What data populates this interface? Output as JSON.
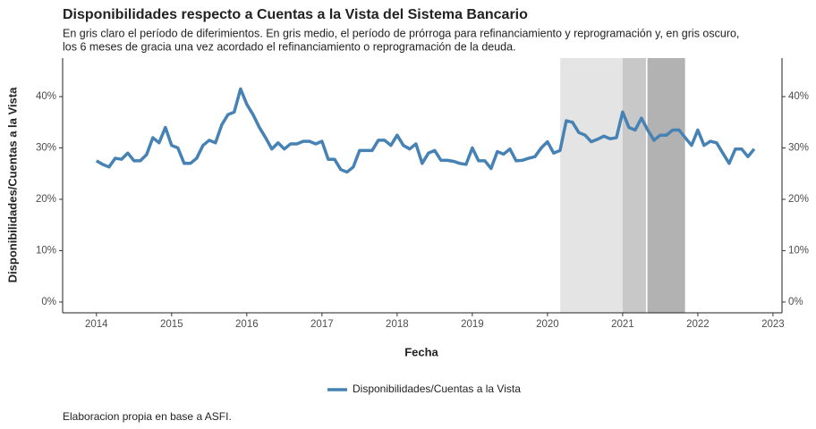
{
  "chart_data": {
    "type": "line",
    "title": "Disponibilidades respecto a Cuentas a la Vista del Sistema Bancario",
    "subtitle": [
      "En gris claro el período de diferimientos. En gris medio, el período de prórroga para refinanciamiento y reprogramación y, en gris oscuro,",
      "los 6 meses de gracia una vez acordado el refinanciamiento o reprogramación de la deuda."
    ],
    "x_label": "Fecha",
    "y_label": "Disponibilidades/Cuentas a la Vista",
    "caption": "Elaboracion propia en base a ASFI.",
    "xlim": [
      2013.55,
      2023.12
    ],
    "xticks": [
      2014,
      2015,
      2016,
      2017,
      2018,
      2019,
      2020,
      2021,
      2022,
      2023
    ],
    "ylim": [
      -2.1,
      47.5
    ],
    "yticks": [
      {
        "value": 0,
        "label": "0%"
      },
      {
        "value": 10,
        "label": "10%"
      },
      {
        "value": 20,
        "label": "20%"
      },
      {
        "value": 30,
        "label": "30%"
      },
      {
        "value": 40,
        "label": "40%"
      }
    ],
    "shaded_regions": [
      {
        "x": [
          2020.17,
          2021.0
        ],
        "color": "#e4e4e4"
      },
      {
        "x": [
          2021.0,
          2021.31
        ],
        "color": "#c8c8c8"
      },
      {
        "x": [
          2021.33,
          2021.83
        ],
        "color": "#b2b2b2"
      }
    ],
    "legend_position": "bottom",
    "x": [
      2014,
      2014.083,
      2014.167,
      2014.25,
      2014.333,
      2014.417,
      2014.5,
      2014.583,
      2014.667,
      2014.75,
      2014.833,
      2014.917,
      2015,
      2015.083,
      2015.167,
      2015.25,
      2015.333,
      2015.417,
      2015.5,
      2015.583,
      2015.667,
      2015.75,
      2015.833,
      2015.917,
      2016,
      2016.083,
      2016.167,
      2016.25,
      2016.333,
      2016.417,
      2016.5,
      2016.583,
      2016.667,
      2016.75,
      2016.833,
      2016.917,
      2017,
      2017.083,
      2017.167,
      2017.25,
      2017.333,
      2017.417,
      2017.5,
      2017.583,
      2017.667,
      2017.75,
      2017.833,
      2017.917,
      2018,
      2018.083,
      2018.167,
      2018.25,
      2018.333,
      2018.417,
      2018.5,
      2018.583,
      2018.667,
      2018.75,
      2018.833,
      2018.917,
      2019,
      2019.083,
      2019.167,
      2019.25,
      2019.333,
      2019.417,
      2019.5,
      2019.583,
      2019.667,
      2019.75,
      2019.833,
      2019.917,
      2020,
      2020.083,
      2020.167,
      2020.25,
      2020.333,
      2020.417,
      2020.5,
      2020.583,
      2020.667,
      2020.75,
      2020.833,
      2020.917,
      2021,
      2021.083,
      2021.167,
      2021.25,
      2021.333,
      2021.417,
      2021.5,
      2021.583,
      2021.667,
      2021.75,
      2021.833,
      2021.917,
      2022,
      2022.083,
      2022.167,
      2022.25,
      2022.333,
      2022.417,
      2022.5,
      2022.583,
      2022.667,
      2022.75
    ],
    "series": [
      {
        "name": "Disponibilidades/Cuentas a la Vista",
        "color": "#4682b4",
        "values": [
          27.5,
          26.8,
          26.3,
          28.0,
          27.8,
          29.0,
          27.5,
          27.5,
          28.7,
          32.0,
          31.0,
          34.0,
          30.5,
          30.0,
          27.0,
          27.0,
          28.0,
          30.5,
          31.5,
          31.0,
          34.5,
          36.5,
          37.0,
          41.5,
          38.5,
          36.5,
          34.0,
          32.0,
          29.8,
          31.0,
          29.8,
          30.8,
          30.8,
          31.3,
          31.3,
          30.8,
          31.3,
          27.8,
          27.8,
          25.8,
          25.3,
          26.3,
          29.5,
          29.5,
          29.5,
          31.5,
          31.5,
          30.5,
          32.5,
          30.5,
          29.8,
          30.8,
          27.0,
          29.0,
          29.5,
          27.6,
          27.6,
          27.4,
          27.0,
          26.8,
          30.0,
          27.5,
          27.5,
          26.0,
          29.3,
          28.8,
          29.8,
          27.5,
          27.6,
          28.0,
          28.3,
          30.0,
          31.2,
          29.0,
          29.5,
          35.3,
          35.0,
          33.0,
          32.5,
          31.2,
          31.7,
          32.3,
          31.8,
          32.0,
          37.0,
          34.0,
          33.5,
          35.8,
          33.5,
          31.5,
          32.5,
          32.5,
          33.5,
          33.5,
          32.0,
          30.5,
          33.5,
          30.5,
          31.3,
          31.0,
          29.0,
          27.0,
          29.8,
          29.8,
          28.3,
          29.8
        ]
      }
    ]
  }
}
